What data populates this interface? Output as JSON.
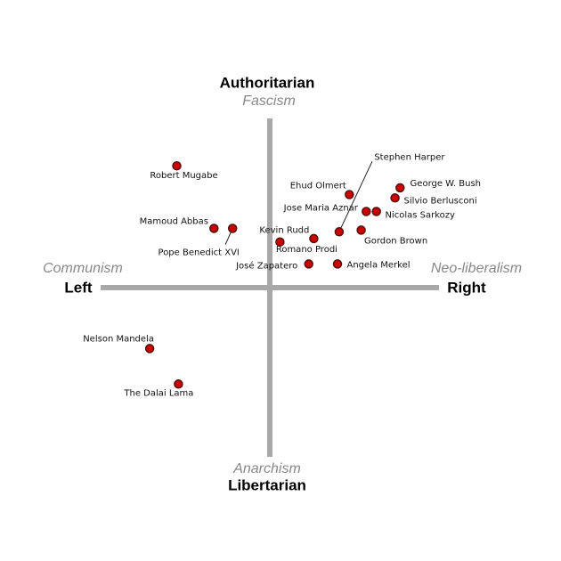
{
  "chart_data": {
    "type": "scatter",
    "top_label": "Authoritarian",
    "top_sublabel": "Fascism",
    "bottom_label": "Libertarian",
    "bottom_sublabel": "Anarchism",
    "left_label": "Left",
    "left_sublabel": "Communism",
    "right_label": "Right",
    "right_sublabel": "Neo-liberalism",
    "xlim": [
      -10,
      10
    ],
    "ylim": [
      -10,
      10
    ],
    "color": "#cc0000",
    "labels": [
      "Robert Mugabe",
      "Mamoud Abbas",
      "Pope Benedict XVI",
      "Kevin Rudd",
      "Romano Prodi",
      "José Zapatero",
      "Angela Merkel",
      "Ehud Olmert",
      "Stephen Harper",
      "Jose Maria Aznar",
      "Nicolas Sarkozy",
      "Gordon Brown",
      "Silvio Berlusconi",
      "George W. Bush",
      "Nelson Mandela",
      "The Dalai Lama"
    ],
    "x": [
      -5.5,
      -3.3,
      -2.2,
      0.6,
      2.6,
      2.3,
      4.0,
      4.7,
      4.1,
      5.7,
      6.3,
      5.4,
      7.4,
      7.7,
      -7.1,
      -5.4
    ],
    "values": [
      7.2,
      3.5,
      3.5,
      2.7,
      2.9,
      1.4,
      1.4,
      5.5,
      3.3,
      4.5,
      4.5,
      3.4,
      5.3,
      5.9,
      -3.6,
      -5.7
    ]
  }
}
